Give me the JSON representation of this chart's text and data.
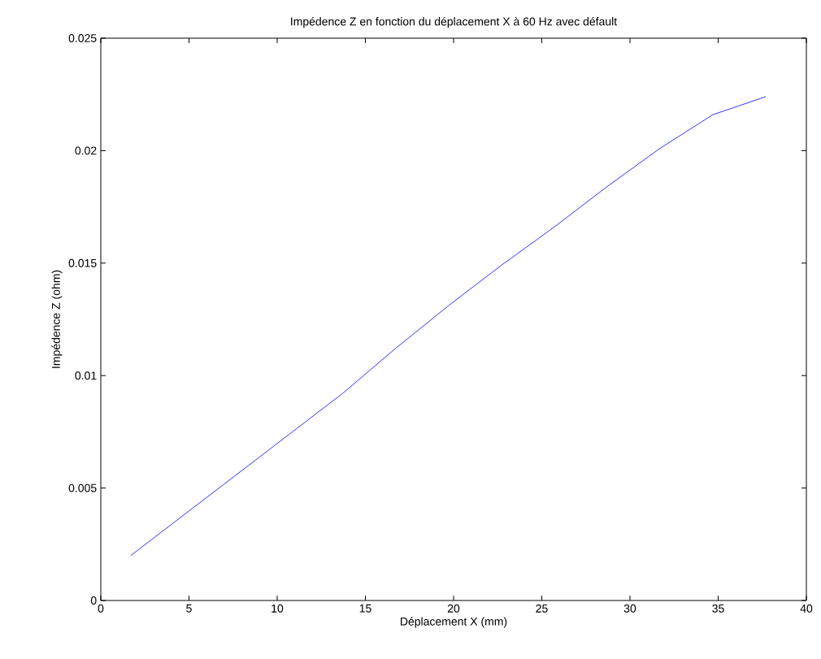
{
  "chart_data": {
    "type": "line",
    "title": "Impédence Z en fonction du déplacement X à 60 Hz avec défault",
    "xlabel": "Déplacement X (mm)",
    "ylabel": "Impédence Z (ohm)",
    "x": [
      1.7,
      4.7,
      7.7,
      10.7,
      13.7,
      16.7,
      19.7,
      22.7,
      25.7,
      28.7,
      31.7,
      34.7,
      37.7
    ],
    "series": [
      {
        "color": "#0000ff",
        "values": [
          0.002,
          0.0038,
          0.0056,
          0.0074,
          0.0092,
          0.0112,
          0.0131,
          0.0149,
          0.0166,
          0.0184,
          0.0201,
          0.0216,
          0.0224
        ]
      }
    ],
    "xlim": [
      0,
      40
    ],
    "ylim": [
      0,
      0.025
    ],
    "xticks": [
      0,
      5,
      10,
      15,
      20,
      25,
      30,
      35,
      40
    ],
    "yticks": [
      0,
      0.005,
      0.01,
      0.015,
      0.02,
      0.025
    ],
    "grid": false,
    "marker": "none",
    "line_style": "solid"
  }
}
